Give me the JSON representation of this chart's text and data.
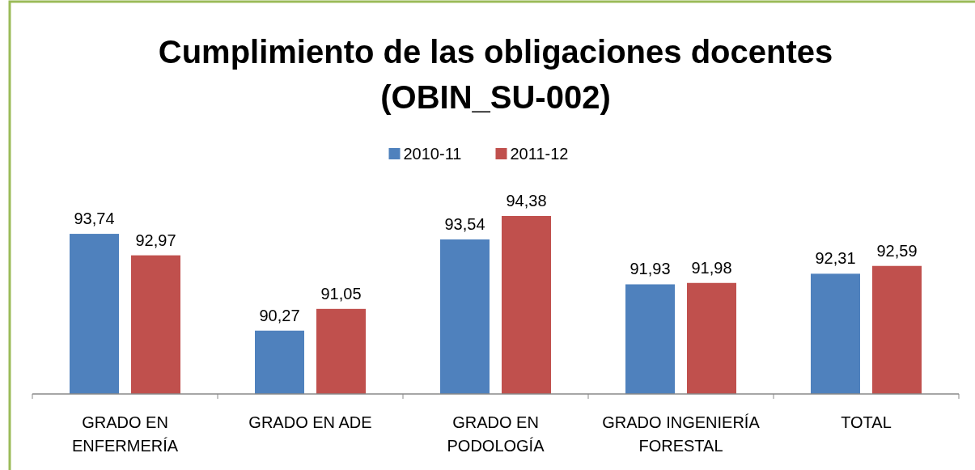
{
  "chart_data": {
    "type": "bar",
    "title": "Cumplimiento de las obligaciones docentes (OBIN_SU-002)",
    "categories": [
      "GRADO EN ENFERMERÍA",
      "GRADO EN ADE",
      "GRADO EN PODOLOGÍA",
      "GRADO INGENIERÍA FORESTAL",
      "TOTAL"
    ],
    "series": [
      {
        "name": "2010-11",
        "color": "#4f81bd",
        "values": [
          93.74,
          90.27,
          93.54,
          91.93,
          92.31
        ],
        "value_labels": [
          "93,74",
          "90,27",
          "93,54",
          "91,93",
          "92,31"
        ]
      },
      {
        "name": "2011-12",
        "color": "#c0504d",
        "values": [
          92.97,
          91.05,
          94.38,
          91.98,
          92.59
        ],
        "value_labels": [
          "92,97",
          "91,05",
          "94,38",
          "91,98",
          "92,59"
        ]
      }
    ],
    "ylim": [
      88,
      94.38
    ],
    "tick_labels": "x",
    "legend": "top"
  }
}
